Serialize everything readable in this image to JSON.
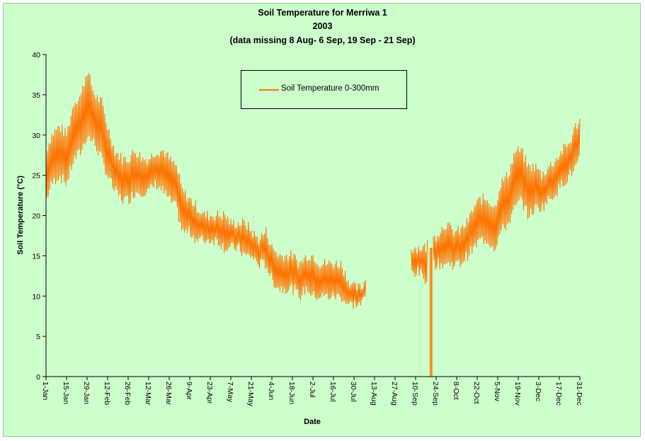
{
  "chart_data": {
    "type": "line",
    "title": "Soil Temperature for Merriwa 1",
    "subtitle_lines": [
      "2003",
      "(data missing 8 Aug- 6 Sep, 19 Sep - 21 Sep)"
    ],
    "xlabel": "Date",
    "ylabel": "Soil Temperature (°C)",
    "ylim": [
      0,
      40
    ],
    "yticks": [
      0,
      5,
      10,
      15,
      20,
      25,
      30,
      35,
      40
    ],
    "x_domain": [
      "2003-01-01",
      "2003-12-31"
    ],
    "xticks": [
      "1-Jan",
      "15-Jan",
      "29-Jan",
      "12-Feb",
      "26-Feb",
      "12-Mar",
      "26-Mar",
      "9-Apr",
      "23-Apr",
      "7-May",
      "21-May",
      "4-Jun",
      "18-Jun",
      "2-Jul",
      "16-Jul",
      "30-Jul",
      "13-Aug",
      "27-Aug",
      "10-Sep",
      "24-Sep",
      "8-Oct",
      "22-Oct",
      "5-Nov",
      "19-Nov",
      "3-Dec",
      "17-Dec",
      "31-Dec"
    ],
    "grid": false,
    "legend_position": "top-center",
    "colors": {
      "series": "#ff7300",
      "background": "#ccffcc"
    },
    "series": [
      {
        "name": "Soil Temperature  0-300mm",
        "daily_range": [
          [
            "2003-01-01",
            22,
            28
          ],
          [
            "2003-01-05",
            24,
            30
          ],
          [
            "2003-01-10",
            25,
            31
          ],
          [
            "2003-01-15",
            24,
            30
          ],
          [
            "2003-01-20",
            27,
            34
          ],
          [
            "2003-01-25",
            28,
            35
          ],
          [
            "2003-01-29",
            30,
            38
          ],
          [
            "2003-02-03",
            29,
            35
          ],
          [
            "2003-02-08",
            27,
            34
          ],
          [
            "2003-02-12",
            25,
            31
          ],
          [
            "2003-02-17",
            23,
            28
          ],
          [
            "2003-02-22",
            22,
            27
          ],
          [
            "2003-02-26",
            22,
            27
          ],
          [
            "2003-03-03",
            23,
            28
          ],
          [
            "2003-03-08",
            23,
            27
          ],
          [
            "2003-03-12",
            23,
            27
          ],
          [
            "2003-03-17",
            24,
            28
          ],
          [
            "2003-03-22",
            23,
            28
          ],
          [
            "2003-03-26",
            22,
            27
          ],
          [
            "2003-03-31",
            21,
            26
          ],
          [
            "2003-04-04",
            18,
            23
          ],
          [
            "2003-04-09",
            18,
            22
          ],
          [
            "2003-04-14",
            17,
            21
          ],
          [
            "2003-04-19",
            17,
            20
          ],
          [
            "2003-04-23",
            17,
            20
          ],
          [
            "2003-04-28",
            17,
            20
          ],
          [
            "2003-05-03",
            16,
            20
          ],
          [
            "2003-05-07",
            16,
            19
          ],
          [
            "2003-05-12",
            16,
            19
          ],
          [
            "2003-05-17",
            15,
            19
          ],
          [
            "2003-05-21",
            15,
            18
          ],
          [
            "2003-05-26",
            14,
            17
          ],
          [
            "2003-05-31",
            14,
            18
          ],
          [
            "2003-06-04",
            12,
            16
          ],
          [
            "2003-06-09",
            11,
            15
          ],
          [
            "2003-06-14",
            11,
            15
          ],
          [
            "2003-06-18",
            11,
            15
          ],
          [
            "2003-06-23",
            10,
            14
          ],
          [
            "2003-06-28",
            11,
            15
          ],
          [
            "2003-07-02",
            10,
            15
          ],
          [
            "2003-07-07",
            10,
            14
          ],
          [
            "2003-07-12",
            10,
            14
          ],
          [
            "2003-07-16",
            10,
            14
          ],
          [
            "2003-07-21",
            10,
            14
          ],
          [
            "2003-07-26",
            9,
            12
          ],
          [
            "2003-07-30",
            9,
            11
          ],
          [
            "2003-08-04",
            9,
            11
          ],
          [
            "2003-08-07",
            10,
            12
          ],
          null,
          [
            "2003-09-07",
            13,
            16
          ],
          [
            "2003-09-12",
            13,
            16
          ],
          [
            "2003-09-17",
            12,
            16
          ],
          [
            "2003-09-18",
            13,
            17
          ],
          null,
          [
            "2003-09-22",
            14,
            17
          ],
          [
            "2003-09-26",
            14,
            18
          ],
          [
            "2003-10-01",
            14,
            19
          ],
          [
            "2003-10-05",
            14,
            18
          ],
          [
            "2003-10-10",
            14,
            18
          ],
          [
            "2003-10-15",
            15,
            19
          ],
          [
            "2003-10-20",
            16,
            21
          ],
          [
            "2003-10-24",
            17,
            22
          ],
          [
            "2003-10-29",
            17,
            22
          ],
          [
            "2003-11-03",
            16,
            21
          ],
          [
            "2003-11-07",
            18,
            24
          ],
          [
            "2003-11-12",
            19,
            25
          ],
          [
            "2003-11-17",
            21,
            28
          ],
          [
            "2003-11-21",
            22,
            28
          ],
          [
            "2003-11-26",
            20,
            26
          ],
          [
            "2003-12-01",
            21,
            26
          ],
          [
            "2003-12-05",
            21,
            25
          ],
          [
            "2003-12-10",
            22,
            26
          ],
          [
            "2003-12-15",
            23,
            27
          ],
          [
            "2003-12-19",
            24,
            28
          ],
          [
            "2003-12-24",
            25,
            29
          ],
          [
            "2003-12-28",
            26,
            31
          ],
          [
            "2003-12-31",
            27,
            32
          ]
        ],
        "dropouts": [
          [
            "2003-09-20",
            0
          ],
          [
            "2003-09-21",
            0
          ]
        ]
      }
    ]
  }
}
